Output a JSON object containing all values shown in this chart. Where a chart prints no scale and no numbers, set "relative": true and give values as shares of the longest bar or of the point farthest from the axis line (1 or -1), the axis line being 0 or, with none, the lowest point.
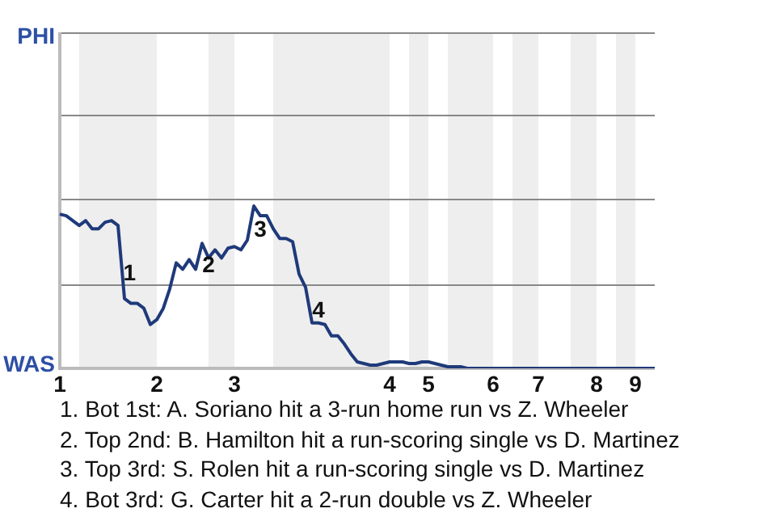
{
  "chart_data": {
    "type": "line",
    "relative": true,
    "categories": [
      "1",
      null,
      null,
      null,
      null,
      null,
      null,
      null,
      null,
      null,
      null,
      null,
      null,
      null,
      null,
      "2",
      null,
      null,
      null,
      null,
      null,
      null,
      null,
      null,
      null,
      null,
      null,
      "3",
      null,
      null,
      null,
      null,
      null,
      null,
      null,
      null,
      null,
      null,
      null,
      null,
      null,
      null,
      null,
      null,
      null,
      null,
      null,
      null,
      null,
      null,
      null,
      "4",
      null,
      null,
      null,
      null,
      null,
      "5",
      null,
      null,
      null,
      null,
      null,
      null,
      null,
      null,
      null,
      "6",
      null,
      null,
      null,
      null,
      null,
      null,
      "7",
      null,
      null,
      null,
      null,
      null,
      null,
      null,
      null,
      "8",
      null,
      null,
      null,
      null,
      null,
      "9",
      null,
      null,
      null
    ],
    "series": [
      {
        "color": "#1f3a7a",
        "values": [
          0.95,
          0.94,
          0.91,
          0.88,
          0.91,
          0.86,
          0.86,
          0.9,
          0.91,
          0.88,
          0.43,
          0.4,
          0.4,
          0.37,
          0.27,
          0.3,
          0.37,
          0.49,
          0.65,
          0.61,
          0.67,
          0.61,
          0.77,
          0.68,
          0.73,
          0.68,
          0.74,
          0.75,
          0.73,
          0.79,
          1,
          0.94,
          0.94,
          0.86,
          0.8,
          0.8,
          0.78,
          0.58,
          0.5,
          0.28,
          0.28,
          0.27,
          0.2,
          0.2,
          0.15,
          0.09,
          0.04,
          0.03,
          0.02,
          0.02,
          0.03,
          0.04,
          0.04,
          0.04,
          0.03,
          0.03,
          0.04,
          0.04,
          0.03,
          0.02,
          0.01,
          0.01,
          0.01,
          0,
          0,
          0,
          0,
          0,
          0,
          0,
          0,
          0,
          0,
          0,
          0,
          0,
          0,
          0,
          0,
          0,
          0,
          0,
          0,
          0,
          0,
          0,
          0,
          0,
          0,
          0,
          0,
          0,
          0
        ]
      }
    ],
    "ref_lines": [
      {
        "axis": "y",
        "value": 0.52,
        "color": "#888888"
      },
      {
        "axis": "y",
        "value": 1.04,
        "color": "#888888"
      },
      {
        "axis": "y",
        "value": 1.56,
        "color": "#888888"
      },
      {
        "axis": "y",
        "value": 2.07,
        "color": "#888888"
      }
    ],
    "annotations": [
      "PHI",
      "WAS",
      "1",
      "2",
      "3",
      "4",
      "1. Bot 1st: A. Soriano hit a 3-run home run vs Z. Wheeler",
      "2. Top 2nd: B. Hamilton hit a run-scoring single vs D. Martinez",
      "3. Top 3rd: S. Rolen hit a run-scoring single vs D. Martinez",
      "4. Bot 3rd: G. Carter hit a 2-run double vs Z. Wheeler"
    ]
  }
}
